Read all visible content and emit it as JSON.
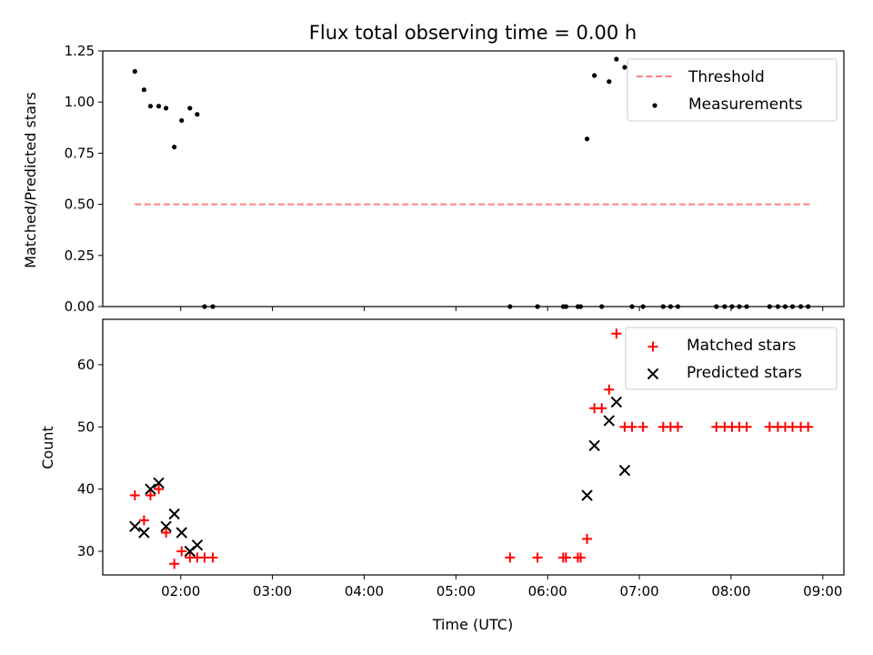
{
  "chart_data": [
    {
      "type": "scatter",
      "title": "Flux total observing time = 0.00 h",
      "ylabel": "Matched/Predicted stars",
      "xlabel": "",
      "xlim": [
        1.15,
        9.23
      ],
      "ylim": [
        0,
        1.25
      ],
      "yticks": [
        "0.00",
        "0.25",
        "0.50",
        "0.75",
        "1.00",
        "1.25"
      ],
      "legend_position": "top-right",
      "threshold": {
        "name": "Threshold",
        "y": 0.5,
        "x": [
          1.5,
          8.87
        ],
        "color": "#ff8080",
        "style": "dashed"
      },
      "series": [
        {
          "name": "Measurements",
          "color": "#000000",
          "marker": "dot",
          "points": [
            [
              1.5,
              1.15
            ],
            [
              1.6,
              1.06
            ],
            [
              1.67,
              0.98
            ],
            [
              1.76,
              0.98
            ],
            [
              1.84,
              0.97
            ],
            [
              1.93,
              0.78
            ],
            [
              2.01,
              0.91
            ],
            [
              2.1,
              0.97
            ],
            [
              2.18,
              0.94
            ],
            [
              2.26,
              0.0
            ],
            [
              2.35,
              0.0
            ],
            [
              5.59,
              0.0
            ],
            [
              5.89,
              0.0
            ],
            [
              6.17,
              0.0
            ],
            [
              6.2,
              0.0
            ],
            [
              6.33,
              0.0
            ],
            [
              6.36,
              0.0
            ],
            [
              6.43,
              0.82
            ],
            [
              6.51,
              1.13
            ],
            [
              6.59,
              0.0
            ],
            [
              6.67,
              1.1
            ],
            [
              6.75,
              1.21
            ],
            [
              6.84,
              1.17
            ],
            [
              6.92,
              0.0
            ],
            [
              7.04,
              0.0
            ],
            [
              7.26,
              0.0
            ],
            [
              7.34,
              0.0
            ],
            [
              7.42,
              0.0
            ],
            [
              7.84,
              0.0
            ],
            [
              7.93,
              0.0
            ],
            [
              8.01,
              0.0
            ],
            [
              8.09,
              0.0
            ],
            [
              8.17,
              0.0
            ],
            [
              8.42,
              0.0
            ],
            [
              8.51,
              0.0
            ],
            [
              8.59,
              0.0
            ],
            [
              8.67,
              0.0
            ],
            [
              8.76,
              0.0
            ],
            [
              8.84,
              0.0
            ]
          ]
        }
      ]
    },
    {
      "type": "scatter",
      "title": "",
      "ylabel": "Count",
      "xlabel": "Time (UTC)",
      "xlim": [
        1.15,
        9.23
      ],
      "ylim": [
        26.2,
        67.3
      ],
      "yticks": [
        "30",
        "40",
        "50",
        "60"
      ],
      "xticks": [
        "02:00",
        "03:00",
        "04:00",
        "05:00",
        "06:00",
        "07:00",
        "08:00",
        "09:00"
      ],
      "legend_position": "top-right",
      "series": [
        {
          "name": "Matched stars",
          "color": "#ff0000",
          "marker": "plus",
          "points": [
            [
              1.5,
              39
            ],
            [
              1.6,
              35
            ],
            [
              1.67,
              39
            ],
            [
              1.76,
              40
            ],
            [
              1.84,
              33
            ],
            [
              1.93,
              28
            ],
            [
              2.01,
              30
            ],
            [
              2.1,
              29
            ],
            [
              2.18,
              29
            ],
            [
              2.26,
              29
            ],
            [
              2.35,
              29
            ],
            [
              5.59,
              29
            ],
            [
              5.89,
              29
            ],
            [
              6.17,
              29
            ],
            [
              6.2,
              29
            ],
            [
              6.33,
              29
            ],
            [
              6.36,
              29
            ],
            [
              6.43,
              32
            ],
            [
              6.51,
              53
            ],
            [
              6.59,
              53
            ],
            [
              6.67,
              56
            ],
            [
              6.75,
              65
            ],
            [
              6.84,
              50
            ],
            [
              6.92,
              50
            ],
            [
              7.04,
              50
            ],
            [
              7.26,
              50
            ],
            [
              7.34,
              50
            ],
            [
              7.42,
              50
            ],
            [
              7.84,
              50
            ],
            [
              7.93,
              50
            ],
            [
              8.01,
              50
            ],
            [
              8.09,
              50
            ],
            [
              8.17,
              50
            ],
            [
              8.42,
              50
            ],
            [
              8.51,
              50
            ],
            [
              8.59,
              50
            ],
            [
              8.67,
              50
            ],
            [
              8.76,
              50
            ],
            [
              8.84,
              50
            ]
          ]
        },
        {
          "name": "Predicted stars",
          "color": "#000000",
          "marker": "x",
          "points": [
            [
              1.5,
              34
            ],
            [
              1.6,
              33
            ],
            [
              1.67,
              40
            ],
            [
              1.76,
              41
            ],
            [
              1.84,
              34
            ],
            [
              1.93,
              36
            ],
            [
              2.01,
              33
            ],
            [
              2.1,
              30
            ],
            [
              2.18,
              31
            ],
            [
              6.43,
              39
            ],
            [
              6.51,
              47
            ],
            [
              6.67,
              51
            ],
            [
              6.75,
              54
            ],
            [
              6.84,
              43
            ]
          ]
        }
      ]
    }
  ]
}
